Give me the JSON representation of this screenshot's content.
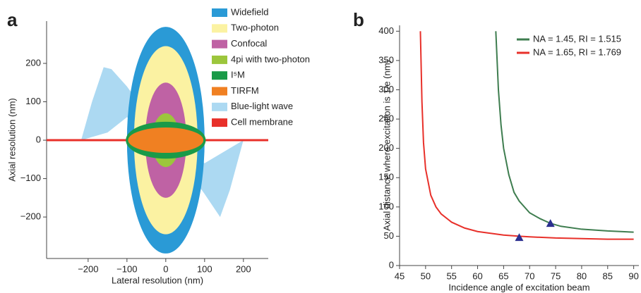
{
  "chart_data": [
    {
      "type": "ellipse",
      "panel": "a",
      "xlabel": "Lateral resolution (nm)",
      "ylabel": "Axial resolution (nm)",
      "xlim": [
        -307,
        264
      ],
      "ylim": [
        -308,
        310
      ],
      "xticks": [
        {
          "value": -200,
          "label": "−200"
        },
        {
          "value": -100,
          "label": "−100"
        },
        0,
        100,
        200
      ],
      "yticks": [
        200,
        100,
        0,
        {
          "value": -100,
          "label": "−100"
        },
        {
          "value": -200,
          "label": "−200"
        }
      ],
      "series": [
        {
          "name": "Widefield",
          "color": "#2a9ad6",
          "shape": "ellipse",
          "values": [
            100,
            295
          ]
        },
        {
          "name": "Two-photon",
          "color": "#fbf2a2",
          "shape": "ellipse",
          "values": [
            82,
            245
          ]
        },
        {
          "name": "Confocal",
          "color": "#bf62a4",
          "shape": "ellipse",
          "values": [
            53,
            150
          ]
        },
        {
          "name": "4pi with two-photon",
          "color": "#9cc63c",
          "shape": "ellipse",
          "values": [
            36,
            70
          ]
        },
        {
          "name": "I⁵M",
          "color": "#1a9a48",
          "shape": "ellipse",
          "values": [
            103,
            48
          ]
        },
        {
          "name": "TIRFM",
          "color": "#f08022",
          "shape": "ellipse",
          "values": [
            97,
            33
          ]
        },
        {
          "name": "Blue-light wave",
          "color": "#acd9f2",
          "shape": "polygon",
          "x": [
            -218,
            -190,
            -160,
            -140,
            -100,
            0,
            100,
            140,
            165,
            200,
            100,
            0,
            -100,
            -150
          ],
          "y": [
            0,
            100,
            190,
            185,
            140,
            0,
            -140,
            -200,
            -130,
            0,
            -60,
            0,
            60,
            20
          ]
        },
        {
          "name": "Cell membrane",
          "color": "#e8302a",
          "shape": "line",
          "x": [
            -307,
            264
          ],
          "y": [
            0,
            0
          ]
        }
      ]
    },
    {
      "type": "line",
      "panel": "b",
      "xlabel": "Incidence angle of excitation beam",
      "ylabel": "Axial distance where excitation is 1/e (nm)",
      "xlim": [
        45,
        91
      ],
      "ylim": [
        0,
        410
      ],
      "xticks": [
        45,
        50,
        55,
        60,
        65,
        70,
        75,
        80,
        85,
        90
      ],
      "yticks": [
        0,
        50,
        100,
        150,
        200,
        250,
        300,
        350,
        400
      ],
      "series": [
        {
          "name": "NA = 1.45, RI = 1.515",
          "color": "#3e7d4f",
          "x": [
            63.5,
            64,
            64.5,
            65,
            66,
            67,
            68,
            70,
            72,
            74,
            76,
            80,
            85,
            90
          ],
          "values": [
            400,
            300,
            240,
            200,
            155,
            125,
            110,
            90,
            80,
            72,
            67,
            62,
            59,
            57
          ]
        },
        {
          "name": "NA = 1.65, RI = 1.769",
          "color": "#e8302a",
          "x": [
            49,
            49.3,
            49.6,
            50,
            51,
            52,
            53,
            55,
            57.5,
            60,
            65,
            68,
            70,
            75,
            80,
            85,
            90
          ],
          "values": [
            400,
            280,
            210,
            165,
            120,
            100,
            88,
            74,
            64,
            58,
            52,
            50,
            49,
            47,
            46,
            45,
            45
          ]
        }
      ],
      "marker_color": "#2b2f8f",
      "markers": [
        {
          "x": 74,
          "y": 72
        },
        {
          "x": 68,
          "y": 48
        }
      ]
    }
  ]
}
